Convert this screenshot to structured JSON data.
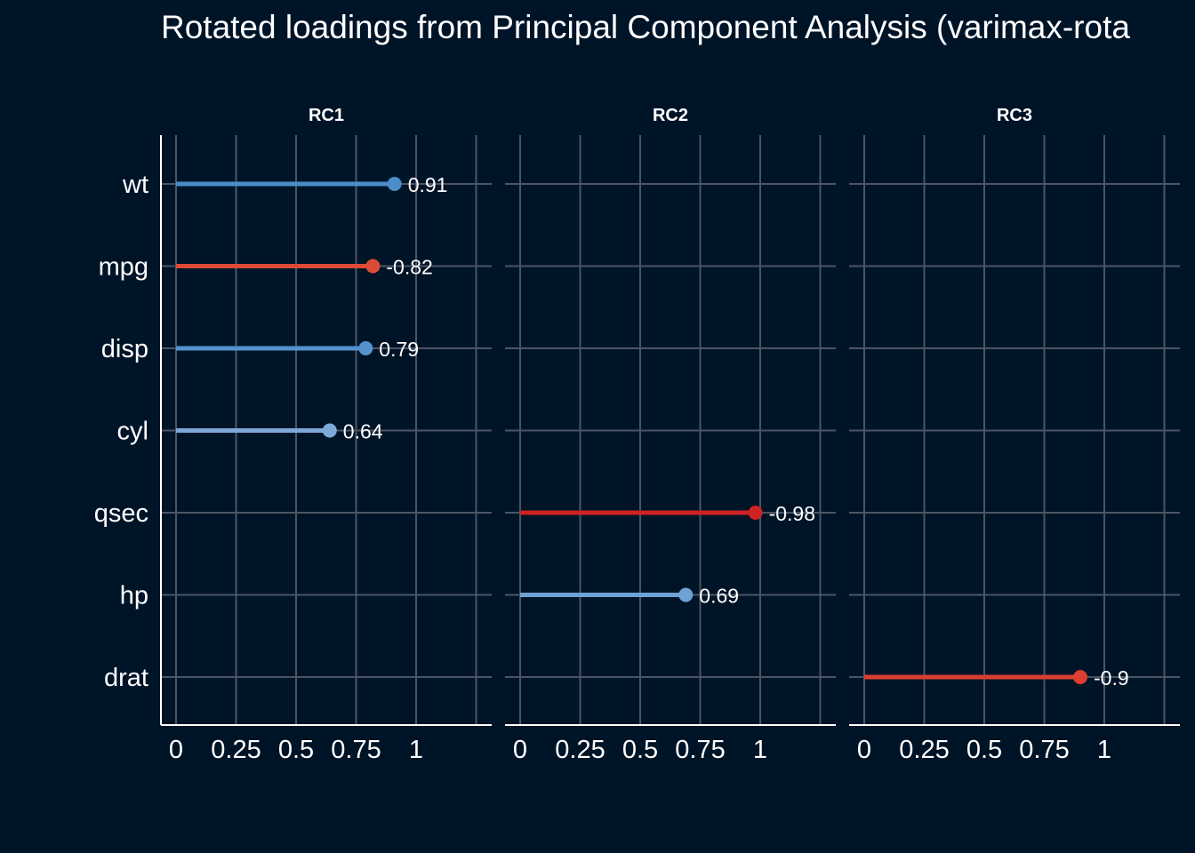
{
  "chart_data": {
    "type": "lollipop",
    "title": "Rotated loadings from Principal Component Analysis (varimax-rota",
    "facets": [
      "RC1",
      "RC2",
      "RC3"
    ],
    "categories": [
      "wt",
      "mpg",
      "disp",
      "cyl",
      "qsec",
      "hp",
      "drat"
    ],
    "xlim": [
      0,
      1
    ],
    "x_ticks": [
      0,
      0.25,
      0.5,
      0.75,
      1
    ],
    "x_tick_labels": [
      "0",
      "0.25",
      "0.5",
      "0.75",
      "1"
    ],
    "points": [
      {
        "facet": "RC1",
        "variable": "wt",
        "abs_loading": 0.91,
        "label": "0.91",
        "color": "#4a8dc8"
      },
      {
        "facet": "RC1",
        "variable": "mpg",
        "abs_loading": 0.82,
        "label": "-0.82",
        "color": "#de4a38"
      },
      {
        "facet": "RC1",
        "variable": "disp",
        "abs_loading": 0.79,
        "label": "0.79",
        "color": "#5492cc"
      },
      {
        "facet": "RC1",
        "variable": "cyl",
        "abs_loading": 0.64,
        "label": "0.64",
        "color": "#7da9d8"
      },
      {
        "facet": "RC2",
        "variable": "qsec",
        "abs_loading": 0.98,
        "label": "-0.98",
        "color": "#cf2222"
      },
      {
        "facet": "RC2",
        "variable": "hp",
        "abs_loading": 0.69,
        "label": "0.69",
        "color": "#6ea2d4"
      },
      {
        "facet": "RC3",
        "variable": "drat",
        "abs_loading": 0.9,
        "label": "-0.9",
        "color": "#dc3e30"
      }
    ],
    "colors": {
      "background": "#001428",
      "grid": "#4b5563",
      "axis": "#ffffff",
      "text": "#ffffff"
    },
    "grid": true,
    "legend": "none"
  }
}
